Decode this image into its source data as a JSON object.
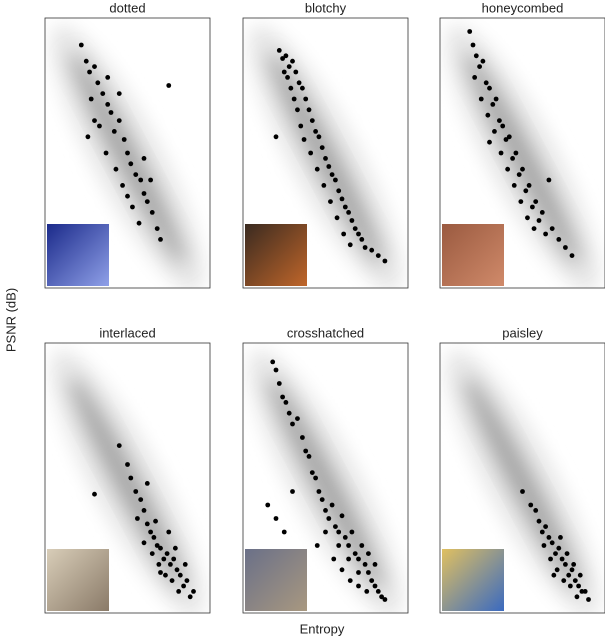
{
  "figure": {
    "xlabel": "Entropy",
    "ylabel": "PSNR (dB)"
  },
  "chart_data": [
    {
      "type": "scatter",
      "title": "dotted",
      "color": "#000000",
      "xlim": [
        0,
        1
      ],
      "ylim": [
        0,
        1
      ],
      "x": [
        0.22,
        0.25,
        0.27,
        0.3,
        0.32,
        0.28,
        0.35,
        0.38,
        0.33,
        0.4,
        0.42,
        0.45,
        0.37,
        0.48,
        0.5,
        0.43,
        0.52,
        0.55,
        0.47,
        0.58,
        0.6,
        0.53,
        0.62,
        0.65,
        0.57,
        0.68,
        0.3,
        0.26,
        0.7,
        0.45,
        0.6,
        0.38,
        0.75,
        0.5,
        0.64
      ],
      "y": [
        0.9,
        0.84,
        0.8,
        0.82,
        0.76,
        0.7,
        0.72,
        0.68,
        0.6,
        0.65,
        0.58,
        0.62,
        0.5,
        0.55,
        0.5,
        0.44,
        0.46,
        0.42,
        0.38,
        0.4,
        0.35,
        0.3,
        0.32,
        0.28,
        0.24,
        0.22,
        0.62,
        0.56,
        0.18,
        0.72,
        0.48,
        0.78,
        0.75,
        0.34,
        0.4
      ]
    },
    {
      "type": "scatter",
      "title": "blotchy",
      "color": "#000000",
      "xlim": [
        0,
        1
      ],
      "ylim": [
        0,
        1
      ],
      "x": [
        0.22,
        0.24,
        0.26,
        0.28,
        0.3,
        0.25,
        0.27,
        0.32,
        0.34,
        0.29,
        0.31,
        0.36,
        0.33,
        0.38,
        0.4,
        0.35,
        0.42,
        0.37,
        0.44,
        0.46,
        0.41,
        0.48,
        0.5,
        0.45,
        0.52,
        0.54,
        0.49,
        0.56,
        0.58,
        0.53,
        0.6,
        0.62,
        0.57,
        0.64,
        0.66,
        0.61,
        0.68,
        0.7,
        0.65,
        0.72,
        0.74,
        0.78,
        0.82,
        0.86,
        0.2
      ],
      "y": [
        0.88,
        0.85,
        0.86,
        0.82,
        0.84,
        0.8,
        0.78,
        0.8,
        0.76,
        0.74,
        0.7,
        0.74,
        0.66,
        0.7,
        0.66,
        0.6,
        0.62,
        0.55,
        0.58,
        0.56,
        0.5,
        0.52,
        0.48,
        0.44,
        0.45,
        0.42,
        0.38,
        0.4,
        0.36,
        0.32,
        0.33,
        0.3,
        0.26,
        0.28,
        0.25,
        0.2,
        0.22,
        0.2,
        0.16,
        0.18,
        0.15,
        0.14,
        0.12,
        0.1,
        0.56
      ]
    },
    {
      "type": "scatter",
      "title": "honeycombed",
      "color": "#000000",
      "xlim": [
        0,
        1
      ],
      "ylim": [
        0,
        1
      ],
      "x": [
        0.18,
        0.2,
        0.22,
        0.24,
        0.21,
        0.26,
        0.28,
        0.25,
        0.3,
        0.32,
        0.29,
        0.34,
        0.36,
        0.33,
        0.38,
        0.4,
        0.37,
        0.42,
        0.44,
        0.41,
        0.46,
        0.48,
        0.45,
        0.5,
        0.52,
        0.49,
        0.54,
        0.56,
        0.53,
        0.58,
        0.6,
        0.57,
        0.62,
        0.64,
        0.68,
        0.72,
        0.76,
        0.8,
        0.3,
        0.66
      ],
      "y": [
        0.95,
        0.9,
        0.86,
        0.82,
        0.78,
        0.84,
        0.76,
        0.7,
        0.74,
        0.68,
        0.64,
        0.7,
        0.62,
        0.58,
        0.6,
        0.55,
        0.5,
        0.56,
        0.48,
        0.44,
        0.5,
        0.42,
        0.38,
        0.44,
        0.36,
        0.32,
        0.38,
        0.3,
        0.26,
        0.32,
        0.25,
        0.22,
        0.28,
        0.2,
        0.22,
        0.18,
        0.15,
        0.12,
        0.54,
        0.4
      ]
    },
    {
      "type": "scatter",
      "title": "interlaced",
      "color": "#000000",
      "xlim": [
        0,
        1
      ],
      "ylim": [
        0,
        1
      ],
      "x": [
        0.3,
        0.45,
        0.5,
        0.52,
        0.55,
        0.58,
        0.6,
        0.56,
        0.62,
        0.64,
        0.6,
        0.66,
        0.68,
        0.65,
        0.7,
        0.72,
        0.69,
        0.74,
        0.76,
        0.73,
        0.78,
        0.8,
        0.77,
        0.82,
        0.84,
        0.81,
        0.86,
        0.88,
        0.75,
        0.7,
        0.85,
        0.9,
        0.62,
        0.79,
        0.67
      ],
      "y": [
        0.44,
        0.62,
        0.55,
        0.5,
        0.45,
        0.42,
        0.38,
        0.35,
        0.33,
        0.3,
        0.26,
        0.28,
        0.25,
        0.22,
        0.24,
        0.2,
        0.18,
        0.22,
        0.18,
        0.14,
        0.2,
        0.16,
        0.12,
        0.14,
        0.1,
        0.08,
        0.12,
        0.06,
        0.3,
        0.15,
        0.18,
        0.08,
        0.48,
        0.24,
        0.34
      ]
    },
    {
      "type": "scatter",
      "title": "crosshatched",
      "color": "#000000",
      "xlim": [
        0,
        1
      ],
      "ylim": [
        0,
        1
      ],
      "x": [
        0.18,
        0.2,
        0.22,
        0.24,
        0.26,
        0.28,
        0.3,
        0.33,
        0.36,
        0.38,
        0.4,
        0.15,
        0.2,
        0.25,
        0.3,
        0.42,
        0.44,
        0.46,
        0.48,
        0.5,
        0.52,
        0.54,
        0.56,
        0.58,
        0.6,
        0.62,
        0.64,
        0.66,
        0.68,
        0.7,
        0.72,
        0.74,
        0.76,
        0.78,
        0.8,
        0.82,
        0.84,
        0.86,
        0.55,
        0.6,
        0.65,
        0.7,
        0.75,
        0.8,
        0.58,
        0.64,
        0.7,
        0.76,
        0.5,
        0.45
      ],
      "y": [
        0.93,
        0.9,
        0.85,
        0.8,
        0.78,
        0.74,
        0.7,
        0.72,
        0.65,
        0.6,
        0.58,
        0.4,
        0.35,
        0.3,
        0.45,
        0.52,
        0.5,
        0.45,
        0.42,
        0.38,
        0.35,
        0.4,
        0.32,
        0.3,
        0.36,
        0.28,
        0.25,
        0.3,
        0.22,
        0.2,
        0.25,
        0.18,
        0.15,
        0.12,
        0.1,
        0.08,
        0.06,
        0.05,
        0.2,
        0.16,
        0.12,
        0.1,
        0.08,
        0.18,
        0.25,
        0.2,
        0.15,
        0.22,
        0.3,
        0.25
      ]
    },
    {
      "type": "scatter",
      "title": "paisley",
      "color": "#000000",
      "xlim": [
        0,
        1
      ],
      "ylim": [
        0,
        1
      ],
      "x": [
        0.5,
        0.55,
        0.58,
        0.6,
        0.62,
        0.64,
        0.66,
        0.63,
        0.68,
        0.7,
        0.67,
        0.72,
        0.74,
        0.71,
        0.76,
        0.78,
        0.75,
        0.8,
        0.82,
        0.79,
        0.84,
        0.86,
        0.83,
        0.88,
        0.9,
        0.73,
        0.77,
        0.81,
        0.69,
        0.85
      ],
      "y": [
        0.45,
        0.4,
        0.38,
        0.34,
        0.3,
        0.32,
        0.28,
        0.25,
        0.26,
        0.22,
        0.2,
        0.24,
        0.2,
        0.16,
        0.18,
        0.14,
        0.12,
        0.16,
        0.12,
        0.1,
        0.1,
        0.08,
        0.06,
        0.08,
        0.05,
        0.28,
        0.22,
        0.18,
        0.14,
        0.14
      ]
    }
  ]
}
